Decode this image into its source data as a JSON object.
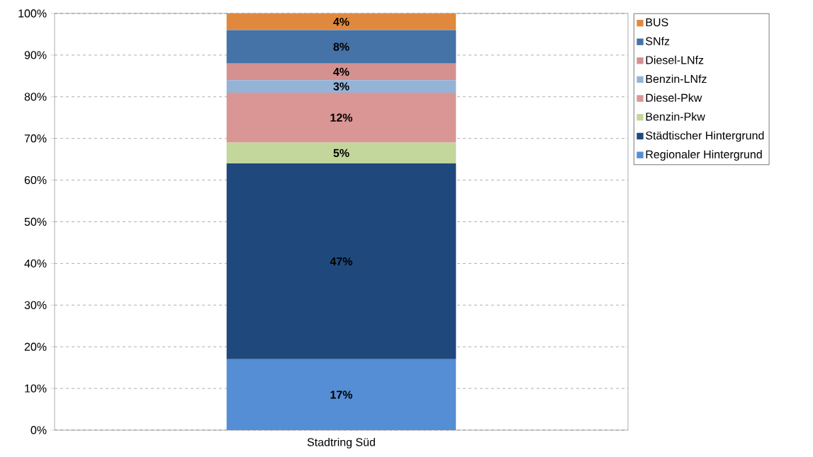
{
  "chart_data": {
    "type": "bar",
    "stacked": true,
    "categories": [
      "Stadtring Süd"
    ],
    "series": [
      {
        "name": "Regionaler Hintergrund",
        "color": "#558ed5",
        "values": [
          17
        ],
        "value_labels": [
          "17%"
        ]
      },
      {
        "name": "Städtischer Hintergrund",
        "color": "#1f497d",
        "values": [
          47
        ],
        "value_labels": [
          "47%"
        ]
      },
      {
        "name": "Benzin-Pkw",
        "color": "#c3d69b",
        "values": [
          5
        ],
        "value_labels": [
          "5%"
        ]
      },
      {
        "name": "Diesel-Pkw",
        "color": "#d99694",
        "values": [
          12
        ],
        "value_labels": [
          "12%"
        ]
      },
      {
        "name": "Benzin-LNfz",
        "color": "#95b3d7",
        "values": [
          3
        ],
        "value_labels": [
          "3%"
        ]
      },
      {
        "name": "Diesel-LNfz",
        "color": "#d4918f",
        "values": [
          4
        ],
        "value_labels": [
          "4%"
        ]
      },
      {
        "name": "SNfz",
        "color": "#4572a7",
        "values": [
          8
        ],
        "value_labels": [
          "8%"
        ]
      },
      {
        "name": "BUS",
        "color": "#e0893e",
        "values": [
          4
        ],
        "value_labels": [
          "4%"
        ]
      }
    ],
    "ylim": [
      0,
      100
    ],
    "yticks": [
      {
        "value": 0,
        "label": "0%"
      },
      {
        "value": 10,
        "label": "10%"
      },
      {
        "value": 20,
        "label": "20%"
      },
      {
        "value": 30,
        "label": "30%"
      },
      {
        "value": 40,
        "label": "40%"
      },
      {
        "value": 50,
        "label": "50%"
      },
      {
        "value": 60,
        "label": "60%"
      },
      {
        "value": 70,
        "label": "70%"
      },
      {
        "value": 80,
        "label": "80%"
      },
      {
        "value": 90,
        "label": "90%"
      },
      {
        "value": 100,
        "label": "100%"
      }
    ],
    "grid": "y",
    "legend": "right"
  }
}
